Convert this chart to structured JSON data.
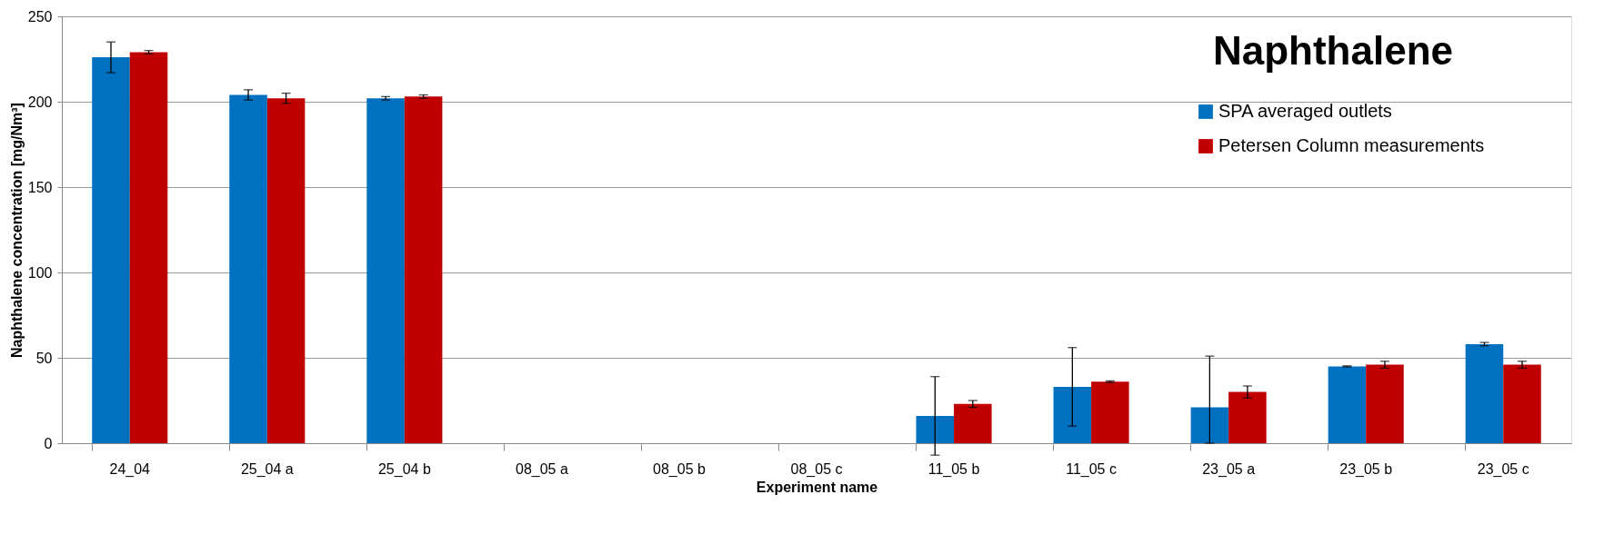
{
  "chart_data": {
    "type": "bar",
    "title": "Naphthalene",
    "xlabel": "Experiment name",
    "ylabel": "Naphthalene concentration [mg/Nm³]",
    "categories": [
      "24_04",
      "25_04 a",
      "25_04 b",
      "08_05 a",
      "08_05 b",
      "08_05 c",
      "11_05 b",
      "11_05 c",
      "23_05 a",
      "23_05 b",
      "23_05 c"
    ],
    "series": [
      {
        "name": "SPA averaged outlets",
        "color": "#0070c0",
        "values": [
          226,
          204,
          202,
          null,
          null,
          null,
          16,
          33,
          21,
          45,
          58
        ],
        "errors": [
          9,
          3,
          1,
          null,
          null,
          null,
          23,
          23,
          [
            0,
            51
          ],
          0.3,
          1
        ]
      },
      {
        "name": "Petersen Column measurements",
        "color": "#c00000",
        "values": [
          229,
          202,
          203,
          null,
          null,
          null,
          23,
          36,
          30,
          46,
          46
        ],
        "errors": [
          1,
          3,
          1,
          null,
          null,
          null,
          2,
          0.5,
          3.5,
          2,
          2
        ]
      }
    ],
    "ylim": [
      0,
      250
    ],
    "yticks": [
      0,
      50,
      100,
      150,
      200,
      250
    ],
    "grid": "y",
    "legend": "top right"
  }
}
